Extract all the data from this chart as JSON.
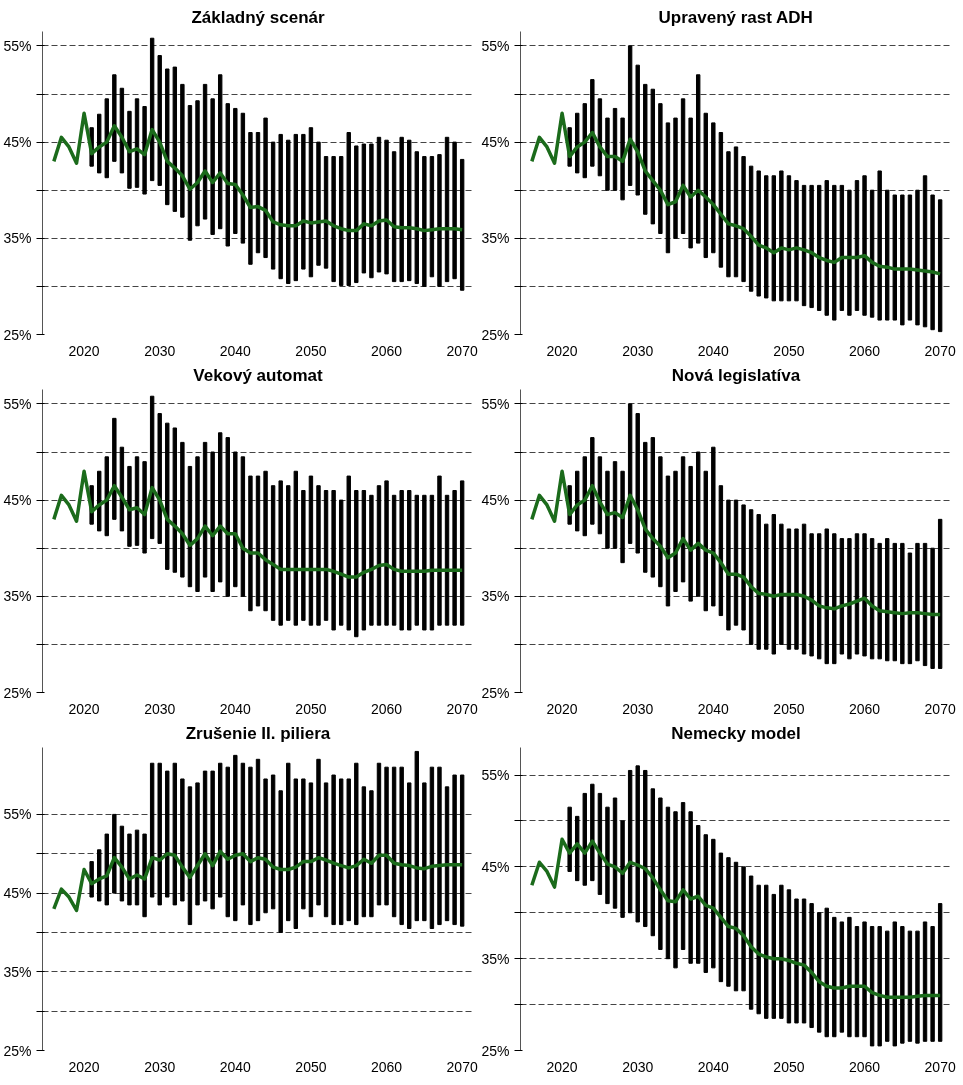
{
  "chart_data": [
    {
      "type": "bar",
      "title": "Základný scenár",
      "xlim": [
        2014.5,
        2071.5
      ],
      "xticks": [
        2020,
        2030,
        2040,
        2050,
        2060,
        2070
      ],
      "ylim": [
        25,
        56.5
      ],
      "yticks": [
        {
          "value": 25,
          "label": "25%"
        },
        {
          "value": 30,
          "label": null
        },
        {
          "value": 35,
          "label": "35%"
        },
        {
          "value": 40,
          "label": null
        },
        {
          "value": 45,
          "label": "45%"
        },
        {
          "value": 50,
          "label": null
        },
        {
          "value": 55,
          "label": "55%"
        }
      ],
      "grid": "y",
      "series": [
        {
          "color": "#000000",
          "x": [
            2021,
            2022,
            2023,
            2024,
            2025,
            2026,
            2027,
            2028,
            2029,
            2030,
            2031,
            2032,
            2033,
            2034,
            2035,
            2036,
            2037,
            2038,
            2039,
            2040,
            2041,
            2042,
            2043,
            2044,
            2045,
            2046,
            2047,
            2048,
            2049,
            2050,
            2051,
            2052,
            2053,
            2054,
            2055,
            2056,
            2057,
            2058,
            2059,
            2060,
            2061,
            2062,
            2063,
            2064,
            2065,
            2066,
            2067,
            2068,
            2069,
            2070
          ],
          "base": [
            42.5,
            41.8,
            41.3,
            43,
            41.8,
            40.2,
            40.3,
            39.6,
            41,
            40.5,
            38.5,
            37.8,
            37.2,
            34.8,
            36.3,
            37,
            35.4,
            36,
            34.2,
            35.5,
            34.5,
            32.3,
            33.5,
            33,
            31.8,
            30.8,
            30.3,
            30.6,
            31.8,
            31,
            32.2,
            31.9,
            30.5,
            30.1,
            30.1,
            30.4,
            31.4,
            30.9,
            31.5,
            31.3,
            30.5,
            30.5,
            30.6,
            30.3,
            30,
            31,
            30,
            30.5,
            30.8,
            29.6
          ],
          "values": [
            4.0,
            6.1,
            8.2,
            9,
            8.8,
            8.0,
            9.2,
            9.1,
            14.8,
            13.5,
            14.1,
            15,
            13.8,
            14,
            13,
            14,
            14.1,
            16,
            14.8,
            13,
            13.5,
            13.7,
            12.5,
            14.5,
            13.2,
            15,
            14.9,
            15.2,
            14,
            15.5,
            12.8,
            11.6,
            13,
            13.4,
            15.9,
            14.2,
            13.4,
            13.9,
            14,
            13.9,
            13.5,
            15,
            14.6,
            13.7,
            13.5,
            12.5,
            13.7,
            15,
            14.2,
            13.6
          ]
        },
        {
          "type": "line",
          "color": "#1b6b1b",
          "x": [
            2016,
            2017,
            2018,
            2019,
            2020,
            2021,
            2022,
            2023,
            2024,
            2025,
            2026,
            2027,
            2028,
            2029,
            2030,
            2031,
            2032,
            2033,
            2034,
            2035,
            2036,
            2037,
            2038,
            2039,
            2040,
            2041,
            2042,
            2043,
            2044,
            2045,
            2046,
            2047,
            2048,
            2049,
            2050,
            2051,
            2052,
            2053,
            2054,
            2055,
            2056,
            2057,
            2058,
            2059,
            2060,
            2061,
            2062,
            2063,
            2064,
            2065,
            2066,
            2067,
            2068,
            2069,
            2070
          ],
          "values": [
            43,
            45.5,
            44.5,
            42.8,
            48,
            43.8,
            44.5,
            45,
            46.7,
            45.5,
            44,
            44.3,
            43.7,
            46.3,
            45,
            43,
            42.3,
            41.5,
            40.1,
            40.8,
            42,
            40.8,
            41.8,
            40.7,
            40.6,
            39.5,
            38.2,
            38.3,
            37.9,
            36.7,
            36.4,
            36.3,
            36.3,
            36.8,
            36.6,
            36.7,
            36.8,
            36.3,
            36,
            35.8,
            35.8,
            36.5,
            36.3,
            36.8,
            36.9,
            36.2,
            36.1,
            36.1,
            36,
            35.8,
            35.9,
            36,
            36,
            36,
            35.9
          ]
        }
      ]
    },
    {
      "type": "bar",
      "title": "Upravený rast ADH",
      "xlim": [
        2014.5,
        2071.5
      ],
      "xticks": [
        2020,
        2030,
        2040,
        2050,
        2060,
        2070
      ],
      "ylim": [
        25,
        56.5
      ],
      "yticks": [
        {
          "value": 25,
          "label": "25%"
        },
        {
          "value": 30,
          "label": null
        },
        {
          "value": 35,
          "label": "35%"
        },
        {
          "value": 40,
          "label": null
        },
        {
          "value": 45,
          "label": "45%"
        },
        {
          "value": 50,
          "label": null
        },
        {
          "value": 55,
          "label": "55%"
        }
      ],
      "grid": "y",
      "series": [
        {
          "color": "#000000",
          "x": [
            2021,
            2022,
            2023,
            2024,
            2025,
            2026,
            2027,
            2028,
            2029,
            2030,
            2031,
            2032,
            2033,
            2034,
            2035,
            2036,
            2037,
            2038,
            2039,
            2040,
            2041,
            2042,
            2043,
            2044,
            2045,
            2046,
            2047,
            2048,
            2049,
            2050,
            2051,
            2052,
            2053,
            2054,
            2055,
            2056,
            2057,
            2058,
            2059,
            2060,
            2061,
            2062,
            2063,
            2064,
            2065,
            2066,
            2067,
            2068,
            2069,
            2070
          ],
          "base": [
            42.5,
            41.8,
            41.3,
            42.5,
            41.5,
            40,
            40,
            39,
            40.5,
            39.5,
            37.5,
            36.5,
            35.5,
            33.5,
            35,
            35.5,
            34,
            34.5,
            33,
            33.5,
            32,
            31,
            31,
            30.5,
            29.5,
            29,
            28.8,
            28.5,
            28.5,
            28.5,
            28.5,
            28,
            27.8,
            27.5,
            27,
            26.5,
            27.5,
            27,
            27.5,
            27,
            26.8,
            26.5,
            26.5,
            26.5,
            26,
            26.5,
            26,
            25.8,
            25.5,
            25.3
          ],
          "values": [
            4,
            6.2,
            7.7,
            9,
            8,
            7.5,
            8.5,
            8.5,
            14.5,
            13.5,
            13.5,
            14,
            13.5,
            13.5,
            12.5,
            14,
            13.5,
            17.5,
            15,
            13.5,
            14,
            13,
            13.5,
            13,
            13,
            13,
            12.7,
            13,
            13.5,
            13,
            12.5,
            12.5,
            12.7,
            13,
            14,
            14,
            13,
            13,
            13.5,
            14.5,
            13.2,
            15.5,
            13.5,
            13,
            13.5,
            13,
            14,
            15.7,
            14,
            13.7
          ]
        },
        {
          "type": "line",
          "color": "#1b6b1b",
          "x": [
            2016,
            2017,
            2018,
            2019,
            2020,
            2021,
            2022,
            2023,
            2024,
            2025,
            2026,
            2027,
            2028,
            2029,
            2030,
            2031,
            2032,
            2033,
            2034,
            2035,
            2036,
            2037,
            2038,
            2039,
            2040,
            2041,
            2042,
            2043,
            2044,
            2045,
            2046,
            2047,
            2048,
            2049,
            2050,
            2051,
            2052,
            2053,
            2054,
            2055,
            2056,
            2057,
            2058,
            2059,
            2060,
            2061,
            2062,
            2063,
            2064,
            2065,
            2066,
            2067,
            2068,
            2069,
            2070
          ],
          "values": [
            43,
            45.5,
            44.5,
            42.8,
            48,
            43.5,
            44.5,
            45,
            46,
            44.5,
            43.5,
            43.5,
            43,
            45.3,
            44,
            42,
            41,
            40,
            38.5,
            38.8,
            40.5,
            39.3,
            40,
            39.3,
            38.5,
            37.5,
            36.5,
            36.3,
            36,
            35.2,
            34.3,
            34,
            33.5,
            34,
            33.8,
            34,
            33.8,
            33.5,
            33,
            32.7,
            32.5,
            33,
            33,
            33,
            33.2,
            32.5,
            32.1,
            32,
            31.8,
            31.8,
            31.8,
            31.7,
            31.6,
            31.5,
            31.3
          ]
        }
      ]
    },
    {
      "type": "bar",
      "title": "Vekový automat",
      "xlim": [
        2014.5,
        2071.5
      ],
      "xticks": [
        2020,
        2030,
        2040,
        2050,
        2060,
        2070
      ],
      "ylim": [
        25,
        56.5
      ],
      "yticks": [
        {
          "value": 25,
          "label": "25%"
        },
        {
          "value": 30,
          "label": null
        },
        {
          "value": 35,
          "label": "35%"
        },
        {
          "value": 40,
          "label": null
        },
        {
          "value": 45,
          "label": "45%"
        },
        {
          "value": 50,
          "label": null
        },
        {
          "value": 55,
          "label": "55%"
        }
      ],
      "grid": "y",
      "series": [
        {
          "color": "#000000",
          "x": [
            2021,
            2022,
            2023,
            2024,
            2025,
            2026,
            2027,
            2028,
            2029,
            2030,
            2031,
            2032,
            2033,
            2034,
            2035,
            2036,
            2037,
            2038,
            2039,
            2040,
            2041,
            2042,
            2043,
            2044,
            2045,
            2046,
            2047,
            2048,
            2049,
            2050,
            2051,
            2052,
            2053,
            2054,
            2055,
            2056,
            2057,
            2058,
            2059,
            2060,
            2061,
            2062,
            2063,
            2064,
            2065,
            2066,
            2067,
            2068,
            2069,
            2070
          ],
          "base": [
            42.5,
            41.8,
            41.3,
            43,
            41.8,
            40.2,
            40.3,
            39.5,
            41,
            40.5,
            37.8,
            37.5,
            37,
            36,
            35.5,
            37,
            35.5,
            36.5,
            35,
            36,
            35,
            33.5,
            34,
            33.5,
            32.5,
            32,
            32.5,
            32,
            32.5,
            32,
            32,
            32.5,
            31.5,
            32,
            31.5,
            30.8,
            31.5,
            32,
            32,
            32,
            32,
            31.5,
            31.5,
            32,
            31.5,
            31.5,
            32,
            32,
            32,
            32
          ],
          "values": [
            4,
            6.2,
            8.2,
            10.5,
            8.7,
            8.3,
            9.2,
            9.5,
            14.8,
            13.5,
            15.2,
            15,
            14,
            12.5,
            14,
            14,
            14.5,
            15.5,
            16.5,
            14,
            14.5,
            14,
            13.5,
            14.5,
            14,
            15,
            14,
            16,
            13.5,
            15.5,
            14.5,
            13.5,
            14.5,
            13,
            16,
            15.2,
            14.5,
            13.5,
            14.5,
            15,
            13.5,
            14.5,
            14.5,
            13.5,
            14,
            14,
            15.5,
            13.5,
            14,
            15
          ]
        },
        {
          "type": "line",
          "color": "#1b6b1b",
          "x": [
            2016,
            2017,
            2018,
            2019,
            2020,
            2021,
            2022,
            2023,
            2024,
            2025,
            2026,
            2027,
            2028,
            2029,
            2030,
            2031,
            2032,
            2033,
            2034,
            2035,
            2036,
            2037,
            2038,
            2039,
            2040,
            2041,
            2042,
            2043,
            2044,
            2045,
            2046,
            2047,
            2048,
            2049,
            2050,
            2051,
            2052,
            2053,
            2054,
            2055,
            2056,
            2057,
            2058,
            2059,
            2060,
            2061,
            2062,
            2063,
            2064,
            2065,
            2066,
            2067,
            2068,
            2069,
            2070
          ],
          "values": [
            43,
            45.5,
            44.5,
            42.8,
            48,
            43.8,
            44.5,
            45,
            46.5,
            45.3,
            44,
            44.2,
            43.5,
            46.3,
            45,
            43,
            42.3,
            41.5,
            40.3,
            41,
            42.3,
            41.3,
            42.3,
            41.5,
            41.5,
            40,
            39.5,
            39.5,
            38.8,
            38.3,
            37.8,
            37.8,
            37.8,
            37.8,
            37.8,
            37.8,
            37.8,
            37.6,
            37.3,
            37,
            37,
            37.5,
            37.8,
            38.2,
            38.3,
            37.8,
            37.6,
            37.6,
            37.6,
            37.6,
            37.7,
            37.7,
            37.7,
            37.7,
            37.7
          ]
        }
      ]
    },
    {
      "type": "bar",
      "title": "Nová legislatíva",
      "xlim": [
        2014.5,
        2071.5
      ],
      "xticks": [
        2020,
        2030,
        2040,
        2050,
        2060,
        2070
      ],
      "ylim": [
        25,
        56.5
      ],
      "yticks": [
        {
          "value": 25,
          "label": "25%"
        },
        {
          "value": 30,
          "label": null
        },
        {
          "value": 35,
          "label": "35%"
        },
        {
          "value": 40,
          "label": null
        },
        {
          "value": 45,
          "label": "45%"
        },
        {
          "value": 50,
          "label": null
        },
        {
          "value": 55,
          "label": "55%"
        }
      ],
      "grid": "y",
      "series": [
        {
          "color": "#000000",
          "x": [
            2021,
            2022,
            2023,
            2024,
            2025,
            2026,
            2027,
            2028,
            2029,
            2030,
            2031,
            2032,
            2033,
            2034,
            2035,
            2036,
            2037,
            2038,
            2039,
            2040,
            2041,
            2042,
            2043,
            2044,
            2045,
            2046,
            2047,
            2048,
            2049,
            2050,
            2051,
            2052,
            2053,
            2054,
            2055,
            2056,
            2057,
            2058,
            2059,
            2060,
            2061,
            2062,
            2063,
            2064,
            2065,
            2066,
            2067,
            2068,
            2069,
            2070
          ],
          "base": [
            42.5,
            41.8,
            41.3,
            42.5,
            41.5,
            40,
            40,
            38.5,
            40.5,
            39.5,
            37.5,
            37,
            36,
            34,
            35.5,
            36.5,
            34.5,
            35,
            33.5,
            34,
            33,
            31.5,
            32,
            31.5,
            30,
            29.5,
            29.5,
            29,
            30,
            29.5,
            29.5,
            29,
            28.8,
            28.5,
            28,
            28,
            29,
            28.5,
            29,
            28.8,
            28.5,
            28.5,
            28.3,
            28.3,
            28,
            28,
            28.3,
            27.8,
            27.5,
            27.5
          ],
          "values": [
            4,
            6.2,
            8.2,
            9,
            8,
            8,
            9,
            9.5,
            14.5,
            14.5,
            13.5,
            14.5,
            13.5,
            13.5,
            12.5,
            13,
            14,
            15,
            14.5,
            16.5,
            13.5,
            13.5,
            13,
            13,
            14,
            14,
            13,
            14.5,
            12.5,
            12.5,
            12.5,
            13.5,
            12.7,
            13,
            14,
            13.5,
            12,
            12.5,
            12.5,
            12.7,
            12.5,
            12,
            12.7,
            12.2,
            12.5,
            11.5,
            12.2,
            12.7,
            12.5,
            15.5
          ]
        },
        {
          "type": "line",
          "color": "#1b6b1b",
          "x": [
            2016,
            2017,
            2018,
            2019,
            2020,
            2021,
            2022,
            2023,
            2024,
            2025,
            2026,
            2027,
            2028,
            2029,
            2030,
            2031,
            2032,
            2033,
            2034,
            2035,
            2036,
            2037,
            2038,
            2039,
            2040,
            2041,
            2042,
            2043,
            2044,
            2045,
            2046,
            2047,
            2048,
            2049,
            2050,
            2051,
            2052,
            2053,
            2054,
            2055,
            2056,
            2057,
            2058,
            2059,
            2060,
            2061,
            2062,
            2063,
            2064,
            2065,
            2066,
            2067,
            2068,
            2069,
            2070
          ],
          "values": [
            43,
            45.5,
            44.5,
            42.8,
            48,
            43.5,
            44.5,
            45,
            46.5,
            44.8,
            43.5,
            43.7,
            43.2,
            45.5,
            44,
            42,
            41,
            40.2,
            39,
            39.5,
            41,
            39.8,
            40.5,
            39.8,
            39.5,
            38.5,
            37.3,
            37.3,
            37,
            36,
            35.3,
            35.2,
            35,
            35.2,
            35.2,
            35.2,
            35,
            34.6,
            34,
            33.8,
            33.7,
            34,
            34.2,
            34.5,
            34.8,
            34,
            33.5,
            33.4,
            33.3,
            33.2,
            33.3,
            33.3,
            33.2,
            33.1,
            33.1
          ]
        }
      ]
    },
    {
      "type": "bar",
      "title": "Zrušenie II. piliera",
      "xlim": [
        2014.5,
        2071.5
      ],
      "xticks": [
        2020,
        2030,
        2040,
        2050,
        2060,
        2070
      ],
      "ylim": [
        25,
        63.5
      ],
      "yticks": [
        {
          "value": 25,
          "label": "25%"
        },
        {
          "value": 30,
          "label": null
        },
        {
          "value": 35,
          "label": "35%"
        },
        {
          "value": 40,
          "label": null
        },
        {
          "value": 45,
          "label": "45%"
        },
        {
          "value": 50,
          "label": null
        },
        {
          "value": 55,
          "label": "55%"
        }
      ],
      "grid": "y",
      "series": [
        {
          "color": "#000000",
          "x": [
            2021,
            2022,
            2023,
            2024,
            2025,
            2026,
            2027,
            2028,
            2029,
            2030,
            2031,
            2032,
            2033,
            2034,
            2035,
            2036,
            2037,
            2038,
            2039,
            2040,
            2041,
            2042,
            2043,
            2044,
            2045,
            2046,
            2047,
            2048,
            2049,
            2050,
            2051,
            2052,
            2053,
            2054,
            2055,
            2056,
            2057,
            2058,
            2059,
            2060,
            2061,
            2062,
            2063,
            2064,
            2065,
            2066,
            2067,
            2068,
            2069,
            2070
          ],
          "base": [
            44.5,
            44,
            43.5,
            45,
            44,
            43.5,
            43.5,
            42,
            44.5,
            43.5,
            44.5,
            43.5,
            44,
            41,
            43.5,
            44,
            43,
            44.5,
            42,
            41.5,
            43.5,
            41,
            41.5,
            42.5,
            43,
            40,
            41.5,
            40.5,
            43,
            42,
            43.5,
            42,
            41,
            41,
            41.5,
            41,
            42,
            42,
            43.5,
            43.5,
            42,
            41,
            40.5,
            41.5,
            41.5,
            40.5,
            41,
            41.5,
            41,
            40.8
          ],
          "values": [
            4.5,
            6.5,
            9,
            10,
            9.5,
            9,
            9.5,
            10.5,
            17,
            18,
            16,
            18,
            15.5,
            17.5,
            15.5,
            16.5,
            17.5,
            17,
            19,
            21,
            18,
            20,
            20.5,
            17,
            17,
            18,
            20,
            19,
            16.5,
            17,
            18.5,
            17,
            19,
            18.5,
            18,
            20.5,
            16.5,
            16,
            18,
            17.5,
            19,
            20,
            18.5,
            21.5,
            17.5,
            20.5,
            20,
            17,
            19,
            19.2
          ]
        },
        {
          "type": "line",
          "color": "#1b6b1b",
          "x": [
            2016,
            2017,
            2018,
            2019,
            2020,
            2021,
            2022,
            2023,
            2024,
            2025,
            2026,
            2027,
            2028,
            2029,
            2030,
            2031,
            2032,
            2033,
            2034,
            2035,
            2036,
            2037,
            2038,
            2039,
            2040,
            2041,
            2042,
            2043,
            2044,
            2045,
            2046,
            2047,
            2048,
            2049,
            2050,
            2051,
            2052,
            2053,
            2054,
            2055,
            2056,
            2057,
            2058,
            2059,
            2060,
            2061,
            2062,
            2063,
            2064,
            2065,
            2066,
            2067,
            2068,
            2069,
            2070
          ],
          "values": [
            43,
            45.5,
            44.5,
            42.8,
            48,
            46.2,
            46.8,
            47.2,
            49.5,
            48.3,
            46.8,
            47.3,
            46.8,
            49.5,
            49.2,
            50,
            49.8,
            48.3,
            47,
            48.5,
            50,
            48.5,
            50.3,
            49.3,
            49.8,
            50,
            49,
            49.5,
            49.3,
            48.3,
            48,
            48,
            48.3,
            49,
            49,
            49.5,
            49.2,
            48.8,
            48.5,
            48.2,
            48.5,
            49.3,
            48.8,
            49.8,
            49.8,
            48.8,
            48.6,
            48.5,
            48.2,
            48.1,
            48.4,
            48.5,
            48.6,
            48.6,
            48.6
          ]
        }
      ]
    },
    {
      "type": "bar",
      "title": "Nemecky model",
      "xlim": [
        2014.5,
        2071.5
      ],
      "xticks": [
        2020,
        2030,
        2040,
        2050,
        2060,
        2070
      ],
      "ylim": [
        25,
        58
      ],
      "yticks": [
        {
          "value": 25,
          "label": "25%"
        },
        {
          "value": 30,
          "label": null
        },
        {
          "value": 35,
          "label": "35%"
        },
        {
          "value": 40,
          "label": null
        },
        {
          "value": 45,
          "label": "45%"
        },
        {
          "value": 50,
          "label": null
        },
        {
          "value": 55,
          "label": "55%"
        }
      ],
      "grid": "y",
      "series": [
        {
          "color": "#000000",
          "x": [
            2021,
            2022,
            2023,
            2024,
            2025,
            2026,
            2027,
            2028,
            2029,
            2030,
            2031,
            2032,
            2033,
            2034,
            2035,
            2036,
            2037,
            2038,
            2039,
            2040,
            2041,
            2042,
            2043,
            2044,
            2045,
            2046,
            2047,
            2048,
            2049,
            2050,
            2051,
            2052,
            2053,
            2054,
            2055,
            2056,
            2057,
            2058,
            2059,
            2060,
            2061,
            2062,
            2063,
            2064,
            2065,
            2066,
            2067,
            2068,
            2069,
            2070
          ],
          "base": [
            44.5,
            43.5,
            43,
            43.5,
            42,
            41,
            40.5,
            39.5,
            40,
            39,
            38.5,
            37.5,
            36,
            35,
            34,
            36,
            34.5,
            34.5,
            33.5,
            34,
            32.5,
            32,
            31.5,
            31.5,
            29.5,
            29,
            28.5,
            28.5,
            28.5,
            28,
            28,
            28,
            27.5,
            27,
            26.5,
            26.5,
            27,
            26.5,
            26.5,
            26.5,
            25.5,
            25.5,
            26,
            25.5,
            25.8,
            26,
            25.8,
            26,
            26,
            26
          ],
          "values": [
            7,
            7,
            10,
            10.5,
            11,
            10.5,
            12,
            10.5,
            15.5,
            17,
            17,
            16,
            16.5,
            16.5,
            17,
            16,
            16.5,
            15,
            15,
            14,
            14,
            14,
            14,
            13.5,
            14.5,
            14,
            14.5,
            13.5,
            14.5,
            14.5,
            13.5,
            13.5,
            13.5,
            13,
            14,
            13,
            12,
            13,
            12,
            12.5,
            13,
            13,
            12,
            13.5,
            12.7,
            12,
            12.2,
            13,
            12.5,
            15
          ]
        },
        {
          "type": "line",
          "color": "#1b6b1b",
          "x": [
            2016,
            2017,
            2018,
            2019,
            2020,
            2021,
            2022,
            2023,
            2024,
            2025,
            2026,
            2027,
            2028,
            2029,
            2030,
            2031,
            2032,
            2033,
            2034,
            2035,
            2036,
            2037,
            2038,
            2039,
            2040,
            2041,
            2042,
            2043,
            2044,
            2045,
            2046,
            2047,
            2048,
            2049,
            2050,
            2051,
            2052,
            2053,
            2054,
            2055,
            2056,
            2057,
            2058,
            2059,
            2060,
            2061,
            2062,
            2063,
            2064,
            2065,
            2066,
            2067,
            2068,
            2069,
            2070
          ],
          "values": [
            43,
            45.5,
            44.5,
            42.8,
            48,
            46.5,
            47.5,
            46.5,
            47.8,
            46.5,
            45.3,
            45,
            44.3,
            45.5,
            45.2,
            44.8,
            43.8,
            42.5,
            41.3,
            41.2,
            42.5,
            41.5,
            41.8,
            40.8,
            40.5,
            39.5,
            38.5,
            38.3,
            37.5,
            36.3,
            35.5,
            35.2,
            35,
            35,
            34.8,
            34.5,
            34.3,
            33.5,
            32.5,
            32,
            31.8,
            31.8,
            32,
            32,
            32,
            31.3,
            31,
            30.8,
            30.8,
            30.8,
            30.8,
            30.9,
            31,
            31,
            31
          ]
        }
      ]
    }
  ]
}
